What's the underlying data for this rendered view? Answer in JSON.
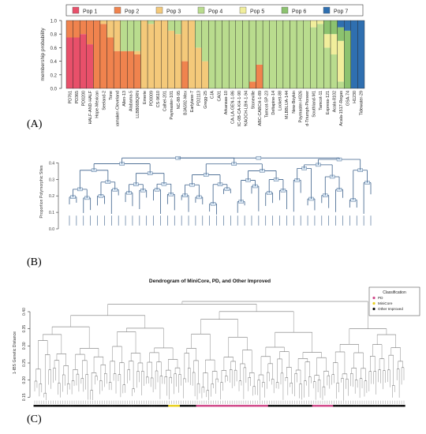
{
  "panels": {
    "a": "(A)",
    "b": "(B)",
    "c": "(C)"
  },
  "chart_data": [
    {
      "type": "bar",
      "stacked": true,
      "ylabel": "membership probability",
      "ylim": [
        0,
        1.0
      ],
      "yticks": [
        "0.0",
        "0.2",
        "0.4",
        "0.6",
        "0.8",
        "1.0"
      ],
      "legend": {
        "placement": "top",
        "entries": [
          "Pop 1",
          "Pop 2",
          "Pop 3",
          "Pop 4",
          "Pop 5",
          "Pop 6",
          "Pop 7"
        ]
      },
      "colors": [
        "#e8506a",
        "#f0834e",
        "#f4c97a",
        "#b9dc8e",
        "#f1ee9c",
        "#8cc26f",
        "#2f6fb0"
      ],
      "categories": [
        "PD761",
        "PD365",
        "PD0200",
        "HALF-AND-HALF",
        "Hope-Mexican",
        "Seeland-2",
        "Tone",
        "Wannamaker-Cleveland",
        "Allen-13",
        "Alabama-5",
        "LLBB06BQRN",
        "Emerie",
        "PD0009",
        "CS-9610",
        "Calhel-201",
        "Paymaster-101",
        "NC-88-95",
        "BJA592-Mex",
        "Earlylane-7",
        "PD2113",
        "Gregg-25",
        "CJA",
        "CA01",
        "Arkansas-10",
        "CA-LA-GEN-1-86",
        "LLBC-0B-CA-KH-1-90",
        "SPKAOCH-LBH-1-94",
        "Stoneville",
        "CABC-CABCH-1-89",
        "Tamcot-SP-23",
        "Deltapine-14",
        "Lockett-88",
        "MLBBLUA-144",
        "New-Boykin",
        "Paymaster-H326",
        "Seeland-Triumph-Pioneer",
        "Southland-M1",
        "Tamcot-11",
        "Express-121",
        "Acala-8102",
        "Acala-1517-Regas",
        "GSA-74",
        "H1230",
        "Tidewater-29"
      ],
      "series": [
        {
          "name": "Pop 1",
          "values": [
            0.75,
            0.75,
            0.8,
            0.65,
            0.0,
            0.0,
            0.0,
            0.0,
            0.0,
            0.0,
            0.0,
            0.0,
            0.0,
            0.0,
            0.0,
            0.0,
            0.0,
            0.0,
            0.0,
            0.0,
            0.0,
            0.0,
            0.0,
            0.0,
            0.0,
            0.0,
            0.0,
            0.0,
            0.0,
            0.0,
            0.0,
            0.0,
            0.0,
            0.0,
            0.0,
            0.0,
            0.0,
            0.0,
            0.0,
            0.0,
            0.0,
            0.0,
            0.0,
            0.0
          ]
        },
        {
          "name": "Pop 2",
          "values": [
            0.25,
            0.25,
            0.2,
            0.35,
            1.0,
            0.95,
            0.75,
            0.55,
            0.55,
            0.55,
            0.5,
            0.0,
            0.0,
            0.0,
            0.0,
            0.0,
            0.0,
            0.4,
            0.0,
            0.0,
            0.0,
            0.0,
            0.0,
            0.0,
            0.0,
            0.0,
            0.0,
            0.1,
            0.35,
            0.0,
            0.0,
            0.0,
            0.0,
            0.0,
            0.0,
            0.0,
            0.0,
            0.0,
            0.0,
            0.0,
            0.0,
            0.0,
            0.0,
            0.0
          ]
        },
        {
          "name": "Pop 3",
          "values": [
            0.0,
            0.0,
            0.0,
            0.0,
            0.0,
            0.05,
            0.25,
            0.45,
            0.0,
            0.0,
            0.05,
            1.0,
            0.95,
            1.0,
            1.0,
            0.85,
            0.8,
            0.6,
            1.0,
            0.6,
            0.4,
            0.0,
            0.0,
            0.0,
            0.0,
            0.0,
            0.0,
            0.0,
            0.0,
            0.0,
            0.0,
            0.0,
            0.0,
            0.0,
            0.0,
            0.0,
            0.0,
            0.0,
            0.0,
            0.0,
            0.0,
            0.0,
            0.0,
            0.0
          ]
        },
        {
          "name": "Pop 4",
          "values": [
            0.0,
            0.0,
            0.0,
            0.0,
            0.0,
            0.0,
            0.0,
            0.0,
            0.45,
            0.45,
            0.45,
            0.0,
            0.05,
            0.0,
            0.0,
            0.15,
            0.2,
            0.0,
            0.0,
            0.4,
            0.6,
            1.0,
            1.0,
            1.0,
            1.0,
            1.0,
            1.0,
            0.9,
            0.65,
            1.0,
            1.0,
            1.0,
            1.0,
            1.0,
            1.0,
            1.0,
            0.9,
            0.95,
            0.6,
            0.5,
            0.1,
            0.0,
            0.0,
            0.0
          ]
        },
        {
          "name": "Pop 5",
          "values": [
            0.0,
            0.0,
            0.0,
            0.0,
            0.0,
            0.0,
            0.0,
            0.0,
            0.0,
            0.0,
            0.0,
            0.0,
            0.0,
            0.0,
            0.0,
            0.0,
            0.0,
            0.0,
            0.0,
            0.0,
            0.0,
            0.0,
            0.0,
            0.0,
            0.0,
            0.0,
            0.0,
            0.0,
            0.0,
            0.0,
            0.0,
            0.0,
            0.0,
            0.0,
            0.0,
            0.0,
            0.1,
            0.05,
            0.2,
            0.3,
            0.6,
            0.0,
            0.0,
            0.0
          ]
        },
        {
          "name": "Pop 6",
          "values": [
            0.0,
            0.0,
            0.0,
            0.0,
            0.0,
            0.0,
            0.0,
            0.0,
            0.0,
            0.0,
            0.0,
            0.0,
            0.0,
            0.0,
            0.0,
            0.0,
            0.0,
            0.0,
            0.0,
            0.0,
            0.0,
            0.0,
            0.0,
            0.0,
            0.0,
            0.0,
            0.0,
            0.0,
            0.0,
            0.0,
            0.0,
            0.0,
            0.0,
            0.0,
            0.0,
            0.0,
            0.0,
            0.0,
            0.2,
            0.2,
            0.2,
            0.85,
            0.0,
            0.0
          ]
        },
        {
          "name": "Pop 7",
          "values": [
            0.0,
            0.0,
            0.0,
            0.0,
            0.0,
            0.0,
            0.0,
            0.0,
            0.0,
            0.0,
            0.0,
            0.0,
            0.0,
            0.0,
            0.0,
            0.0,
            0.0,
            0.0,
            0.0,
            0.0,
            0.0,
            0.0,
            0.0,
            0.0,
            0.0,
            0.0,
            0.0,
            0.0,
            0.0,
            0.0,
            0.0,
            0.0,
            0.0,
            0.0,
            0.0,
            0.0,
            0.0,
            0.0,
            0.0,
            0.0,
            0.1,
            0.15,
            1.0,
            1.0
          ]
        }
      ]
    },
    {
      "type": "dendrogram",
      "ylabel": "Proportion Polymorphic Sites",
      "yticks": [
        "0.0",
        "0.1",
        "0.2",
        "0.3",
        "0.4"
      ],
      "ylim": [
        0,
        0.45
      ]
    },
    {
      "type": "dendrogram",
      "title": "Dendrogram of MiniCore, PD, and Other Improved",
      "ylabel": "1-IBS Genetic Distance",
      "yticks": [
        "0.15",
        "0.20",
        "0.25",
        "0.30",
        "0.35",
        "0.40"
      ],
      "ylim": [
        0.13,
        0.43
      ],
      "legend": {
        "title": "Classification",
        "placement": "top-right",
        "entries": [
          {
            "label": "PD",
            "color": "#d04a8a"
          },
          {
            "label": "MiniCore",
            "color": "#e8d020"
          },
          {
            "label": "Other Improved",
            "color": "#111111"
          }
        ]
      }
    }
  ]
}
